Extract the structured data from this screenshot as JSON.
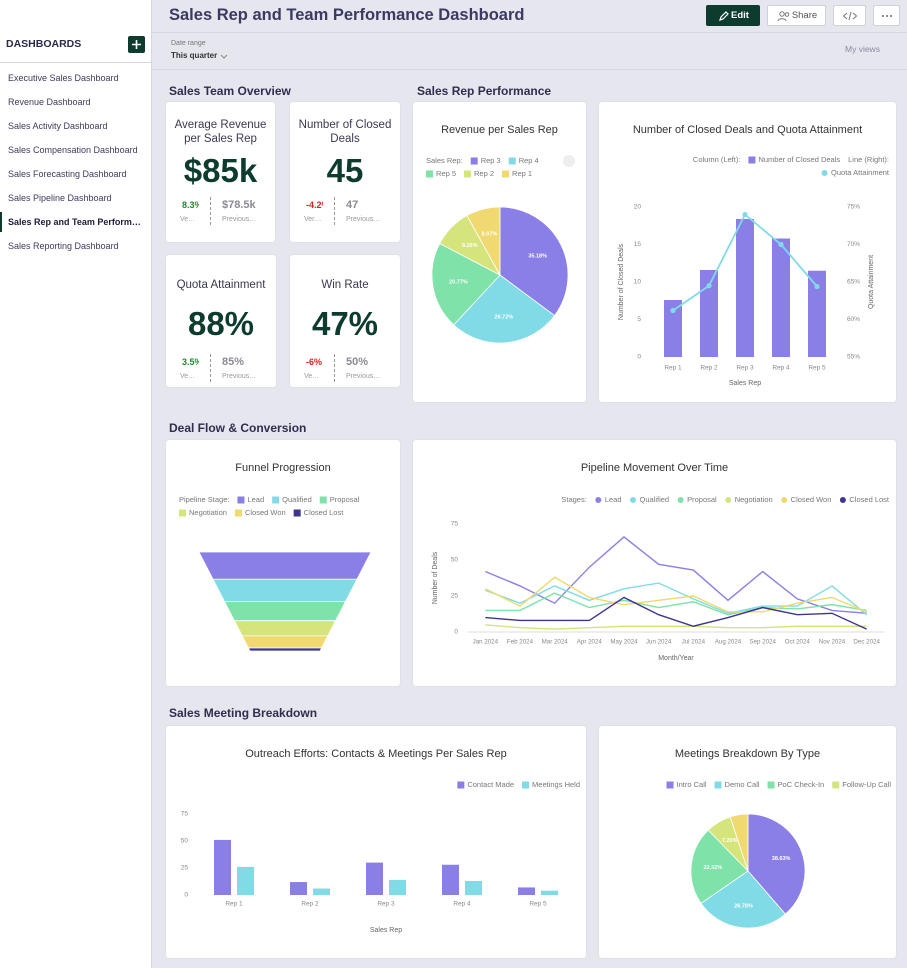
{
  "sidebar": {
    "heading": "DASHBOARDS",
    "active": 6,
    "items": [
      "Executive Sales Dashboard",
      "Revenue Dashboard",
      "Sales Activity Dashboard",
      "Sales Compensation Dashboard",
      "Sales Forecasting Dashboard",
      "Sales Pipeline Dashboard",
      "Sales Rep and Team Perform…",
      "Sales Reporting Dashboard"
    ]
  },
  "header": {
    "title": "Sales Rep and Team Performance Dashboard",
    "edit": "Edit",
    "share": "Share"
  },
  "filters": {
    "label": "Date range",
    "value": "This quarter",
    "views": "My views"
  },
  "sections": [
    "Sales Team Overview",
    "Sales Rep Performance",
    "Deal Flow & Conversion",
    "Sales Meeting Breakdown"
  ],
  "kpis": [
    {
      "title": "Average Revenue per Sales Rep",
      "value": "$85k",
      "delta": "8.3%",
      "delta_color": "#1e8a2e",
      "delta_label": "Ve…",
      "previous": "$78.5k",
      "previous_label": "Previous…"
    },
    {
      "title": "Number of Closed Deals",
      "value": "45",
      "delta": "-4.2%",
      "delta_color": "#e0201b",
      "delta_label": "Ver…",
      "previous": "47",
      "previous_label": "Previous…"
    },
    {
      "title": "Quota Attainment",
      "value": "88%",
      "delta": "3.5%",
      "delta_color": "#1e8a2e",
      "delta_label": "Ve…",
      "previous": "85%",
      "previous_label": "Previous…"
    },
    {
      "title": "Win Rate",
      "value": "47%",
      "delta": "-6%",
      "delta_color": "#e0201b",
      "delta_label": "Ve…",
      "previous": "50%",
      "previous_label": "Previous…"
    }
  ],
  "chart_data": [
    {
      "type": "pie",
      "title": "Revenue per Sales Rep",
      "legend_title": "Sales Rep:",
      "categories": [
        "Rep 3",
        "Rep 4",
        "Rep 5",
        "Rep 2",
        "Rep 1"
      ],
      "values": [
        35.18,
        26.72,
        20.77,
        9.26,
        8.07
      ],
      "value_labels": [
        "35.18%",
        "26.72%",
        "20.77%",
        "9.26%",
        "8.07%"
      ],
      "colors": [
        "#8a7fe6",
        "#80dbe6",
        "#7fe2a8",
        "#d5e57c",
        "#efd970"
      ]
    },
    {
      "type": "combo",
      "title": "Number of Closed Deals and Quota Attainment",
      "legend_titles": [
        "Column (Left):",
        "Line (Right):"
      ],
      "categories": [
        "Rep 1",
        "Rep 2",
        "Rep 3",
        "Rep 4",
        "Rep 5"
      ],
      "series": [
        {
          "name": "Number of Closed Deals",
          "type": "bar",
          "color": "#8a7fe6",
          "values": [
            7.6,
            11.6,
            18.4,
            15.8,
            11.5
          ]
        },
        {
          "name": "Quota Attainment",
          "type": "line",
          "axis": "y2",
          "color": "#80dbe6",
          "values": [
            61.2,
            64.5,
            74,
            70,
            64.4
          ]
        }
      ],
      "ylim": [
        0,
        20
      ],
      "yticks": [
        0,
        5,
        10,
        15,
        20
      ],
      "y2lim": [
        55,
        75
      ],
      "y2ticks": [
        {
          "value": 55,
          "label": "55%"
        },
        {
          "value": 60,
          "label": "60%"
        },
        {
          "value": 65,
          "label": "65%"
        },
        {
          "value": 70,
          "label": "70%"
        },
        {
          "value": 75,
          "label": "75%"
        }
      ],
      "ylabel": "Number of Closed Deals",
      "y2label": "Quota Attainment",
      "xlabel": "Sales Rep"
    },
    {
      "type": "funnel",
      "title": "Funnel Progression",
      "legend_title": "Pipeline Stage:",
      "categories": [
        "Lead",
        "Qualified",
        "Proposal",
        "Negotiation",
        "Closed Won",
        "Closed Lost"
      ],
      "values": [
        270,
        220,
        190,
        150,
        120,
        30
      ],
      "colors": [
        "#8a7fe6",
        "#80dbe6",
        "#7fe2a8",
        "#d5e57c",
        "#efd970",
        "#3d3590"
      ]
    },
    {
      "type": "line",
      "title": "Pipeline Movement Over Time",
      "legend_title": "Stages:",
      "categories": [
        "Jan 2024",
        "Feb 2024",
        "Mar 2024",
        "Apr 2024",
        "May 2024",
        "Jun 2024",
        "Jul 2024",
        "Aug 2024",
        "Sep 2024",
        "Oct 2024",
        "Nov 2024",
        "Dec 2024"
      ],
      "series": [
        {
          "name": "Lead",
          "color": "#8a7fe6",
          "values": [
            42,
            32,
            20,
            45,
            66,
            47,
            43,
            22,
            42,
            23,
            15,
            13
          ]
        },
        {
          "name": "Qualified",
          "color": "#80dbe6",
          "values": [
            29,
            20,
            32,
            22,
            30,
            34,
            23,
            13,
            18,
            18,
            32,
            12
          ]
        },
        {
          "name": "Proposal",
          "color": "#7fe2a8",
          "values": [
            15,
            15,
            27,
            17,
            22,
            17,
            21,
            12,
            17,
            16,
            19,
            15
          ]
        },
        {
          "name": "Negotiation",
          "color": "#d5e57c",
          "values": [
            5,
            3,
            2,
            3,
            4,
            4,
            4,
            3,
            3,
            4,
            4,
            4
          ]
        },
        {
          "name": "Closed Won",
          "color": "#efd970",
          "values": [
            30,
            18,
            38,
            24,
            19,
            22,
            25,
            14,
            14,
            20,
            24,
            14
          ]
        },
        {
          "name": "Closed Lost",
          "color": "#3d3590",
          "values": [
            10,
            8,
            8,
            8,
            24,
            12,
            4,
            10,
            17,
            12,
            13,
            2
          ]
        }
      ],
      "ylim": [
        0,
        75
      ],
      "yticks": [
        0,
        25,
        50,
        75
      ],
      "ylabel": "Number of Deals",
      "xlabel": "Month/Year"
    },
    {
      "type": "bar",
      "title": "Outreach Efforts: Contacts & Meetings Per Sales Rep",
      "categories": [
        "Rep 1",
        "Rep 2",
        "Rep 3",
        "Rep 4",
        "Rep 5"
      ],
      "series": [
        {
          "name": "Contact Made",
          "color": "#8a7fe6",
          "values": [
            51,
            12,
            30,
            28,
            7
          ]
        },
        {
          "name": "Meetings Held",
          "color": "#80dbe6",
          "values": [
            26,
            6,
            14,
            13,
            4
          ]
        }
      ],
      "ylim": [
        0,
        75
      ],
      "yticks": [
        0,
        25,
        50,
        75
      ],
      "xlabel": "Sales Rep"
    },
    {
      "type": "pie",
      "title": "Meetings Breakdown By Type",
      "categories": [
        "Intro Call",
        "Demo Call",
        "PoC Check-In",
        "Follow-Up Call",
        null
      ],
      "values": [
        38.63,
        26.78,
        22.32,
        7.2,
        5.07
      ],
      "value_labels": [
        "38.63%",
        "26.78%",
        "22.32%",
        "7.20%",
        null
      ],
      "colors": [
        "#8a7fe6",
        "#80dbe6",
        "#7fe2a8",
        "#d5e57c",
        "#efd970"
      ]
    }
  ]
}
